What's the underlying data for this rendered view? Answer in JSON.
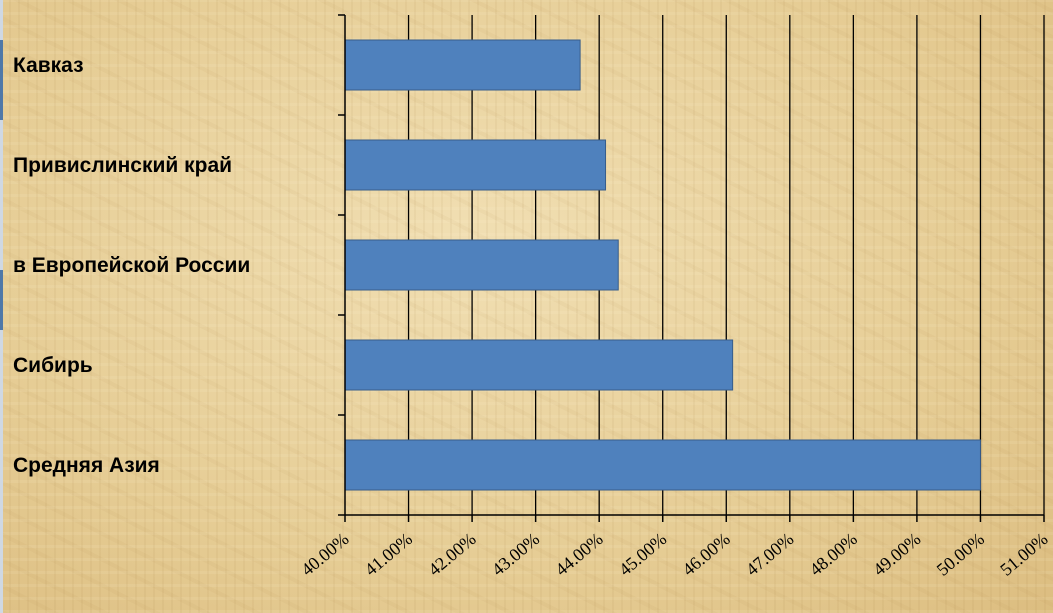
{
  "chart_data": {
    "type": "bar",
    "orientation": "horizontal",
    "categories": [
      "Кавказ",
      "Привислинский край",
      "в Европейской России",
      "Сибирь",
      "Средняя Азия"
    ],
    "values": [
      43.7,
      44.1,
      44.3,
      46.1,
      50.0
    ],
    "xlim": [
      40,
      51
    ],
    "x_ticks": [
      40,
      41,
      42,
      43,
      44,
      45,
      46,
      47,
      48,
      49,
      50,
      51
    ],
    "x_tick_labels": [
      "40.00%",
      "41.00%",
      "42.00%",
      "43.00%",
      "44.00%",
      "45.00%",
      "46.00%",
      "47.00%",
      "48.00%",
      "49.00%",
      "50.00%",
      "51.00%"
    ],
    "grid": "vertical",
    "bar_color": "#4f81bd",
    "bar_edge_color": "#385d8a",
    "title": "",
    "xlabel": "",
    "ylabel": ""
  }
}
